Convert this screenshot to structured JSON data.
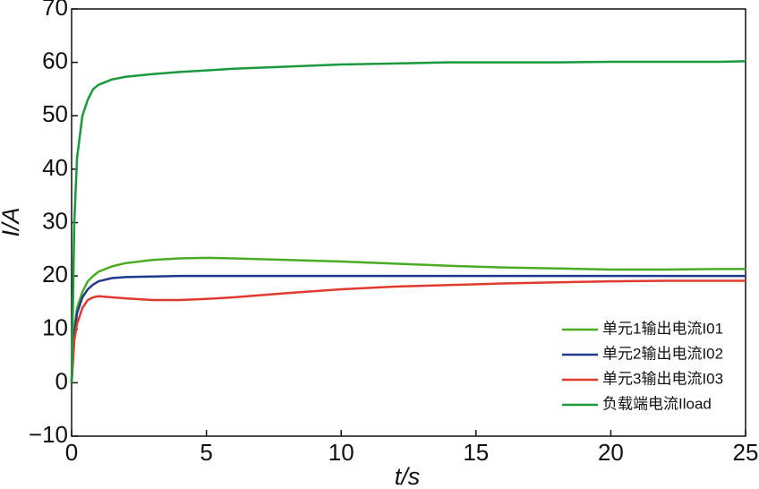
{
  "chart_data": {
    "type": "line",
    "x_label": "t/s",
    "y_label": "I/A",
    "x": [
      0,
      0.1,
      0.2,
      0.4,
      0.6,
      0.8,
      1,
      1.5,
      2,
      3,
      4,
      5,
      6,
      8,
      10,
      12,
      14,
      16,
      18,
      20,
      22,
      24,
      25
    ],
    "series": [
      {
        "name": "单元1输出电流I01",
        "color": "#4aac24",
        "values": [
          0,
          10,
          14,
          17,
          19,
          20,
          20.8,
          21.8,
          22.4,
          23,
          23.3,
          23.4,
          23.3,
          23,
          22.7,
          22.3,
          21.9,
          21.6,
          21.4,
          21.2,
          21.2,
          21.3,
          21.3
        ]
      },
      {
        "name": "单元2输出电流I02",
        "color": "#1f3a8c",
        "values": [
          0,
          9,
          13,
          16,
          17.5,
          18.4,
          19,
          19.6,
          19.8,
          19.9,
          20,
          20,
          20,
          20,
          20,
          20,
          20,
          20,
          20,
          20,
          20,
          20,
          20
        ]
      },
      {
        "name": "单元3输出电流I03",
        "color": "#e03a2e",
        "values": [
          0,
          8,
          11,
          14,
          15.5,
          16,
          16.2,
          16,
          15.8,
          15.5,
          15.5,
          15.7,
          16,
          16.8,
          17.5,
          18,
          18.3,
          18.6,
          18.8,
          19,
          19.1,
          19.1,
          19.1
        ]
      },
      {
        "name": "负载端电流Iload",
        "color": "#1a9a3c",
        "values": [
          0,
          30,
          42,
          50,
          53,
          55,
          55.8,
          56.8,
          57.3,
          57.8,
          58.2,
          58.5,
          58.8,
          59.2,
          59.6,
          59.8,
          60,
          60,
          60,
          60.1,
          60.1,
          60.1,
          60.2
        ]
      }
    ],
    "xlim": [
      0,
      25
    ],
    "xticks": [
      0,
      5,
      10,
      15,
      20,
      25
    ],
    "ylim": [
      -10,
      70
    ],
    "yticks": [
      {
        "value": -10,
        "label": "−10"
      },
      0,
      10,
      20,
      30,
      40,
      50,
      60,
      70
    ]
  }
}
